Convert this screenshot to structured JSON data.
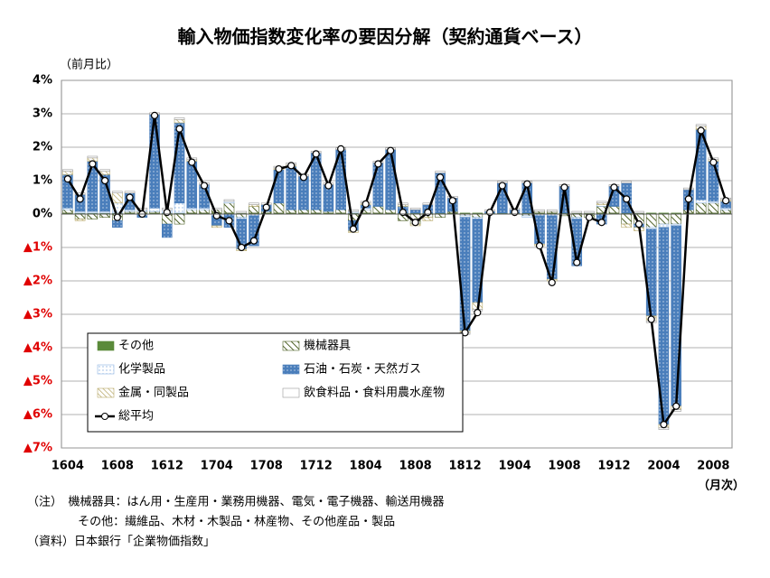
{
  "chart_data": {
    "type": "bar",
    "title": "輸入物価指数変化率の要因分解（契約通貨ベース）",
    "y_label": "（前月比）",
    "x_label": "（月次）",
    "categories": [
      "1604",
      null,
      null,
      null,
      "1608",
      null,
      null,
      null,
      "1612",
      null,
      null,
      null,
      "1704",
      null,
      null,
      null,
      "1708",
      null,
      null,
      null,
      "1712",
      null,
      null,
      null,
      "1804",
      null,
      null,
      null,
      "1808",
      null,
      null,
      null,
      "1812",
      null,
      null,
      null,
      "1904",
      null,
      null,
      null,
      "1908",
      null,
      null,
      null,
      "1912",
      null,
      null,
      null,
      "2004",
      null,
      null,
      null,
      "2008",
      null
    ],
    "series": [
      {
        "name": "その他",
        "color": "#5a8a3a",
        "values": [
          0.03,
          0.03,
          0.03,
          0.03,
          0.03,
          0.03,
          0.03,
          0.03,
          0.03,
          0.03,
          0.03,
          0.03,
          0.03,
          0.03,
          0.03,
          0.03,
          0.03,
          0.03,
          0.03,
          0.03,
          0.03,
          0.03,
          0.03,
          0.03,
          0.03,
          0.03,
          0.03,
          0.03,
          0.03,
          0.03,
          0.03,
          0.03,
          0.03,
          0.03,
          0.03,
          0.03,
          0.03,
          0.03,
          0.03,
          0.03,
          0.03,
          0.03,
          0.03,
          0.03,
          0.03,
          0.03,
          0.03,
          0.03,
          0.03,
          0.03,
          0.03,
          0.03,
          0.03,
          0.03
        ]
      },
      {
        "name": "機械器具",
        "color": "#4f6228",
        "values": [
          0.1,
          -0.15,
          -0.15,
          -0.1,
          -0.2,
          0.05,
          0.05,
          0.05,
          -0.3,
          -0.3,
          0.1,
          0.1,
          0.1,
          0.3,
          -0.1,
          0.2,
          0.05,
          0.3,
          0.1,
          0.1,
          0.1,
          0.05,
          0.1,
          -0.2,
          0.1,
          0.2,
          0.1,
          -0.2,
          -0.3,
          -0.1,
          -0.1,
          0.05,
          -0.05,
          -0.1,
          0,
          0,
          0,
          -0.05,
          0.05,
          0.05,
          -0.05,
          -0.1,
          -0.1,
          0.2,
          0.2,
          -0.3,
          -0.3,
          -0.4,
          -0.3,
          -0.3,
          0.1,
          0.3,
          0.3,
          0.1
        ]
      },
      {
        "name": "化学製品",
        "color": "#8db3e2",
        "values": [
          0.05,
          0.05,
          0.05,
          0.05,
          0.3,
          0.05,
          0.05,
          0.1,
          0.1,
          0.3,
          0.05,
          0.05,
          -0.05,
          0.05,
          -0.05,
          -0.05,
          0,
          0,
          0,
          0,
          0,
          0,
          0,
          0.05,
          0.05,
          0,
          0,
          0,
          0,
          0,
          0,
          0,
          -0.05,
          -0.05,
          0,
          0,
          0,
          -0.05,
          -0.05,
          -0.05,
          0,
          -0.05,
          0,
          0.05,
          0,
          0,
          0,
          -0.05,
          -0.1,
          -0.05,
          0,
          0.1,
          0.05,
          0.05
        ]
      },
      {
        "name": "石油・石炭・天然ガス",
        "color": "#4a7ebb",
        "values": [
          1.0,
          0.5,
          1.5,
          1.1,
          -0.2,
          0.5,
          -0.1,
          2.8,
          -0.4,
          2.4,
          1.4,
          0.7,
          -0.3,
          -0.4,
          -0.9,
          -0.9,
          0.2,
          1.0,
          1.3,
          1.0,
          1.7,
          0.8,
          1.8,
          -0.3,
          0.1,
          1.3,
          1.8,
          0.2,
          0.1,
          0.25,
          1.2,
          0.4,
          -3.4,
          -2.5,
          0.05,
          0.9,
          0.1,
          0.9,
          -0.85,
          -1.9,
          0.8,
          -1.4,
          0,
          -0.3,
          0.6,
          0.9,
          -0.1,
          -2.6,
          -5.9,
          -5.4,
          0.6,
          2.1,
          1.2,
          0.2
        ]
      },
      {
        "name": "金属・同製品",
        "color": "#b8a96a",
        "values": [
          0.1,
          -0.05,
          0.1,
          0.1,
          0.3,
          0,
          0,
          0,
          0,
          0.1,
          0.05,
          0,
          -0.05,
          0,
          -0.05,
          0.05,
          0,
          0.05,
          0.05,
          0,
          0,
          0,
          0,
          -0.05,
          0.05,
          0,
          0,
          0.05,
          -0.05,
          -0.1,
          0,
          0,
          -0.05,
          -0.2,
          0,
          0,
          0,
          0,
          -0.05,
          -0.05,
          0,
          0,
          0,
          0.05,
          0,
          -0.1,
          -0.1,
          -0.15,
          -0.1,
          -0.1,
          0,
          0.1,
          0.05,
          0.05
        ]
      },
      {
        "name": "飲食料品・食料用農水産物",
        "color": "#ffffff",
        "values": [
          0.05,
          0.05,
          0.05,
          0.05,
          0.05,
          0.05,
          0.05,
          0.05,
          0.05,
          0.05,
          0.05,
          0.05,
          0.05,
          0.05,
          0.05,
          0.05,
          0.05,
          0.05,
          0.05,
          0.05,
          0.05,
          0.05,
          0.05,
          0.05,
          0.05,
          0.05,
          0.05,
          0.05,
          0.05,
          0.05,
          0.05,
          0.05,
          -0.05,
          -0.05,
          0.05,
          0.05,
          0.05,
          0.05,
          0.05,
          0.05,
          0.05,
          0.05,
          0.05,
          0.05,
          0.05,
          0.05,
          0.05,
          -0.05,
          -0.05,
          -0.05,
          0.05,
          0.05,
          0.05,
          0.05
        ]
      },
      {
        "name": "総平均",
        "type": "line",
        "color": "#000000",
        "values": [
          1.05,
          0.45,
          1.5,
          1.0,
          -0.1,
          0.5,
          0.0,
          2.95,
          0.05,
          2.55,
          1.55,
          0.85,
          -0.05,
          -0.2,
          -1.0,
          -0.8,
          0.2,
          1.35,
          1.45,
          1.1,
          1.8,
          0.85,
          1.95,
          -0.45,
          0.3,
          1.5,
          1.9,
          0.05,
          -0.25,
          0.05,
          1.1,
          0.4,
          -3.55,
          -2.95,
          0.05,
          0.85,
          0.05,
          0.9,
          -0.95,
          -2.05,
          0.8,
          -1.45,
          -0.1,
          -0.25,
          0.8,
          0.45,
          -0.3,
          -3.15,
          -6.3,
          -5.75,
          0.45,
          2.5,
          1.55,
          0.4
        ]
      }
    ],
    "ylim": [
      -7,
      4
    ],
    "yticks": [
      {
        "value": 4,
        "label": "4%"
      },
      {
        "value": 3,
        "label": "3%"
      },
      {
        "value": 2,
        "label": "2%"
      },
      {
        "value": 1,
        "label": "1%"
      },
      {
        "value": 0,
        "label": "0%"
      },
      {
        "value": -1,
        "label": "▲1%"
      },
      {
        "value": -2,
        "label": "▲2%"
      },
      {
        "value": -3,
        "label": "▲3%"
      },
      {
        "value": -4,
        "label": "▲4%"
      },
      {
        "value": -5,
        "label": "▲5%"
      },
      {
        "value": -6,
        "label": "▲6%"
      },
      {
        "value": -7,
        "label": "▲7%"
      }
    ],
    "grid": true,
    "legend": "lower-left",
    "notes": [
      "（注）　機械器具：はん用・生産用・業務用機器、電気・電子機器、輸送用機器",
      "　　　　 その他：繊維品、木材・木製品・林産物、その他産品・製品",
      "（資料）日本銀行「企業物価指数」"
    ]
  }
}
